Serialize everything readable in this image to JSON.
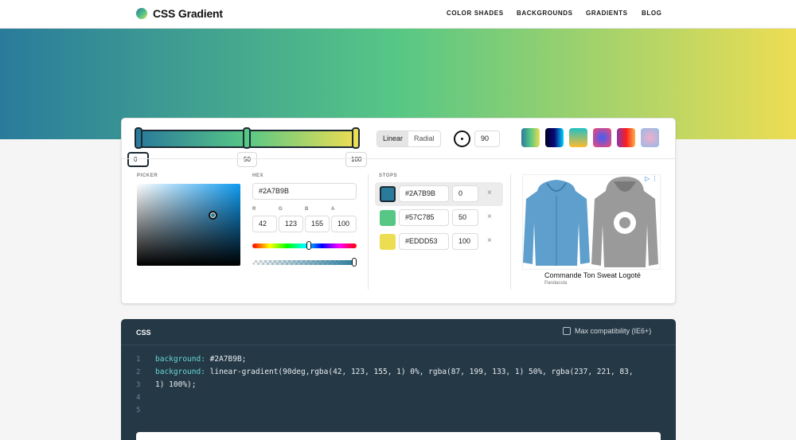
{
  "header": {
    "logo_text": "CSS Gradient",
    "nav": [
      "COLOR SHADES",
      "BACKGROUNDS",
      "GRADIENTS",
      "BLOG"
    ]
  },
  "gradient": {
    "stops": [
      {
        "hex": "#2A7B9B",
        "position": "0",
        "color": "#2a7b9b"
      },
      {
        "hex": "#57C785",
        "position": "50",
        "color": "#57c785"
      },
      {
        "hex": "#EDDD53",
        "position": "100",
        "color": "#eddd53"
      }
    ],
    "type_options": [
      "Linear",
      "Radial"
    ],
    "selected_type": "Linear",
    "angle": "90"
  },
  "presets": [
    {
      "name": "preset-1",
      "colors": [
        "#2a7b9b",
        "#57c785",
        "#eddd53"
      ]
    },
    {
      "name": "preset-2",
      "colors": [
        "#020024",
        "#090979",
        "#00d4ff"
      ]
    },
    {
      "name": "preset-3",
      "colors": [
        "#22c1c3",
        "#fdbb2d"
      ]
    },
    {
      "name": "preset-4",
      "colors": [
        "#3f5efb",
        "#fc466b"
      ]
    },
    {
      "name": "preset-5",
      "colors": [
        "#833ab4",
        "#fd1d1d",
        "#fcb045"
      ]
    },
    {
      "name": "preset-6",
      "colors": [
        "#eeaeca",
        "#94bbe9"
      ]
    }
  ],
  "picker": {
    "label": "PICKER",
    "hex_label": "HEX",
    "hex_value": "#2A7B9B",
    "rgba_labels": [
      "R",
      "G",
      "B",
      "A"
    ],
    "rgba_values": [
      "42",
      "123",
      "155",
      "100"
    ]
  },
  "stops_label": "STOPS",
  "stop_remove_glyph": "×",
  "ad": {
    "title": "Commande Ton Sweat Logoté",
    "advertiser": "Pandacola",
    "badge": "▷ ⋮"
  },
  "css_panel": {
    "title": "CSS",
    "compat_label": "Max compatibility (IE6+)",
    "line_numbers": [
      "1",
      "2",
      "3",
      "4",
      "5"
    ],
    "lines": [
      {
        "prop": "background:",
        "value": " #2A7B9B;"
      },
      {
        "prop": "background:",
        "value": " linear-gradient(90deg,rgba(42, 123, 155, 1) 0%, rgba(87, 199, 133, 1) 50%, rgba(237, 221, 83,"
      },
      {
        "prop": "",
        "value": "1) 100%);"
      }
    ]
  }
}
